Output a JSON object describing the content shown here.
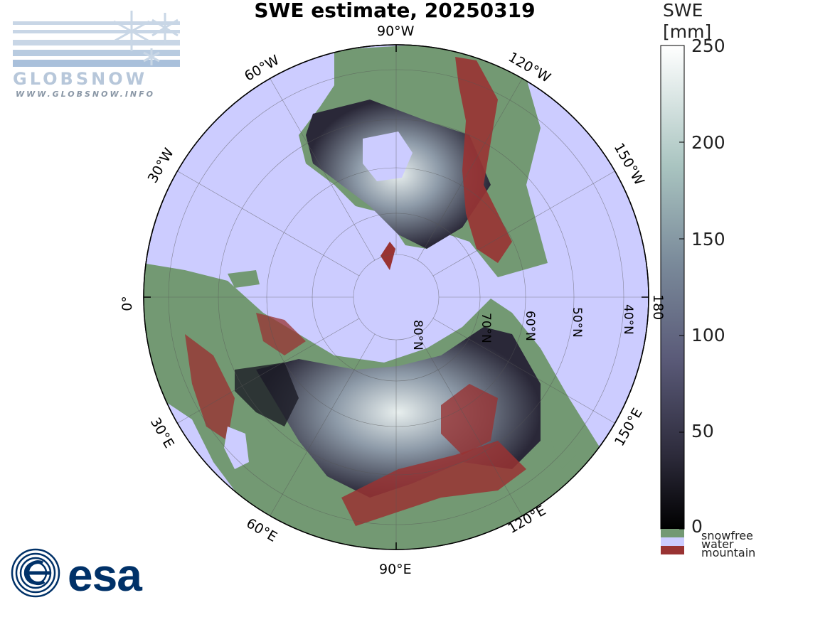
{
  "title": "SWE estimate, 20250319",
  "colorbar": {
    "title_line1": "SWE",
    "title_line2": "[mm]",
    "ticks": [
      "250",
      "200",
      "150",
      "100",
      "50",
      "0"
    ],
    "gradient_colors": [
      "#ffffff",
      "#a9c4c0",
      "#7a8a9a",
      "#5a5a78",
      "#2c2a3a",
      "#000000"
    ],
    "categories": [
      {
        "label": "snowfree",
        "color": "#739973"
      },
      {
        "label": "water",
        "color": "#ccccff"
      },
      {
        "label": "mountain",
        "color": "#993333"
      }
    ]
  },
  "map": {
    "longitude_labels": [
      "90°W",
      "120°W",
      "150°W",
      "180",
      "150°E",
      "120°E",
      "90°E",
      "60°E",
      "30°E",
      "0°",
      "30°W",
      "60°W"
    ],
    "latitude_labels": [
      "80°N",
      "70°N",
      "60°N",
      "50°N",
      "40°N"
    ],
    "ocean_color": "#ccccff",
    "land_color": "#739973",
    "mountain_color": "#993333"
  },
  "logos": {
    "globsnow_text": "GLOBSNOW",
    "globsnow_url": "WWW.GLOBSNOW.INFO",
    "esa_text": "esa"
  }
}
